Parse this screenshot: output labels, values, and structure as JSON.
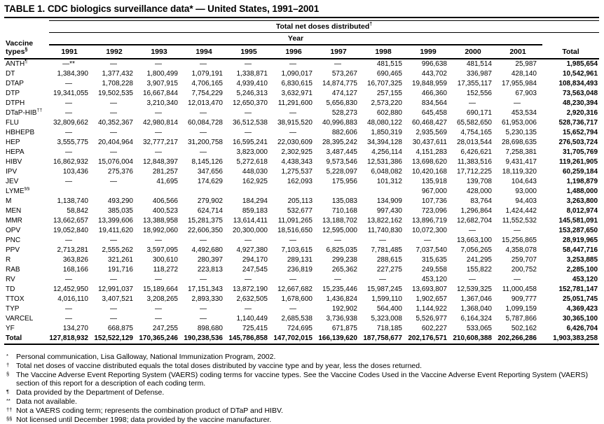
{
  "title": "TABLE 1. CDC biologics surveillance data* — United States, 1991–2001",
  "table": {
    "spanner1": "Total net doses distributed",
    "spanner1_sup": "†",
    "spanner2": "Year",
    "row_header_line1": "Vaccine",
    "row_header_line2": "types",
    "row_header_sup": "§",
    "columns": [
      "1991",
      "1992",
      "1993",
      "1994",
      "1995",
      "1996",
      "1997",
      "1998",
      "1999",
      "2000",
      "2001"
    ],
    "total_label": "Total",
    "rows": [
      {
        "label": "ANTH",
        "sup": "¶",
        "values": [
          "—**",
          "—",
          "—",
          "—",
          "—",
          "—",
          "—",
          "481,515",
          "996,638",
          "481,514",
          "25,987"
        ],
        "total": "1,985,654"
      },
      {
        "label": "DT",
        "sup": "",
        "values": [
          "1,384,390",
          "1,377,432",
          "1,800,499",
          "1,079,191",
          "1,338,871",
          "1,090,017",
          "573,267",
          "690,465",
          "443,702",
          "336,987",
          "428,140"
        ],
        "total": "10,542,961"
      },
      {
        "label": "DTAP",
        "sup": "",
        "values": [
          "—",
          "1,708,228",
          "3,907,915",
          "4,706,165",
          "4,939,410",
          "6,830,615",
          "14,874,775",
          "16,707,325",
          "19,848,959",
          "17,355,117",
          "17,955,984"
        ],
        "total": "108,834,493"
      },
      {
        "label": "DTP",
        "sup": "",
        "values": [
          "19,341,055",
          "19,502,535",
          "16,667,844",
          "7,754,229",
          "5,246,313",
          "3,632,971",
          "474,127",
          "257,155",
          "466,360",
          "152,556",
          "67,903"
        ],
        "total": "73,563,048"
      },
      {
        "label": "DTPH",
        "sup": "",
        "values": [
          "—",
          "—",
          "3,210,340",
          "12,013,470",
          "12,650,370",
          "11,291,600",
          "5,656,830",
          "2,573,220",
          "834,564",
          "—",
          "—"
        ],
        "total": "48,230,394"
      },
      {
        "label": "DTaP-HIB",
        "sup": "††",
        "values": [
          "—",
          "—",
          "—",
          "—",
          "—",
          "—",
          "528,273",
          "602,880",
          "645,458",
          "690,171",
          "453,534"
        ],
        "total": "2,920,316"
      },
      {
        "label": "FLU",
        "sup": "",
        "values": [
          "32,809,662",
          "40,352,367",
          "42,980,814",
          "60,084,728",
          "36,512,538",
          "38,915,520",
          "40,996,883",
          "48,080,122",
          "60,468,427",
          "65,582,650",
          "61,953,006"
        ],
        "total": "528,736,717"
      },
      {
        "label": "HBHEPB",
        "sup": "",
        "values": [
          "—",
          "—",
          "—",
          "—",
          "—",
          "—",
          "882,606",
          "1,850,319",
          "2,935,569",
          "4,754,165",
          "5,230,135"
        ],
        "total": "15,652,794"
      },
      {
        "label": "HEP",
        "sup": "",
        "values": [
          "3,555,775",
          "20,404,964",
          "32,777,217",
          "31,200,758",
          "16,595,241",
          "22,030,609",
          "28,395,242",
          "34,394,128",
          "30,437,611",
          "28,013,544",
          "28,698,635"
        ],
        "total": "276,503,724"
      },
      {
        "label": "HEPA",
        "sup": "",
        "values": [
          "—",
          "—",
          "—",
          "—",
          "3,823,000",
          "2,302,925",
          "3,487,445",
          "4,256,114",
          "4,151,283",
          "6,426,621",
          "7,258,381"
        ],
        "total": "31,705,769"
      },
      {
        "label": "HIBV",
        "sup": "",
        "values": [
          "16,862,932",
          "15,076,004",
          "12,848,397",
          "8,145,126",
          "5,272,618",
          "4,438,343",
          "9,573,546",
          "12,531,386",
          "13,698,620",
          "11,383,516",
          "9,431,417"
        ],
        "total": "119,261,905"
      },
      {
        "label": "IPV",
        "sup": "",
        "values": [
          "103,436",
          "275,376",
          "281,257",
          "347,656",
          "448,030",
          "1,275,537",
          "5,228,097",
          "6,048,082",
          "10,420,168",
          "17,712,225",
          "18,119,320"
        ],
        "total": "60,259,184"
      },
      {
        "label": "JEV",
        "sup": "",
        "values": [
          "—",
          "—",
          "41,695",
          "174,629",
          "162,925",
          "162,093",
          "175,956",
          "101,312",
          "135,918",
          "139,708",
          "104,643"
        ],
        "total": "1,198,879"
      },
      {
        "label": "LYME",
        "sup": "§§",
        "values": [
          "",
          "",
          "",
          "",
          "",
          "",
          "",
          "",
          "967,000",
          "428,000",
          "93,000"
        ],
        "total": "1,488,000"
      },
      {
        "label": "M",
        "sup": "",
        "values": [
          "1,138,740",
          "493,290",
          "406,566",
          "279,902",
          "184,294",
          "205,113",
          "135,083",
          "134,909",
          "107,736",
          "83,764",
          "94,403"
        ],
        "total": "3,263,800"
      },
      {
        "label": "MEN",
        "sup": "",
        "values": [
          "58,842",
          "385,035",
          "400,523",
          "624,714",
          "859,183",
          "532,677",
          "710,168",
          "997,430",
          "723,096",
          "1,296,864",
          "1,424,442"
        ],
        "total": "8,012,974"
      },
      {
        "label": "MMR",
        "sup": "",
        "values": [
          "13,662,657",
          "13,399,606",
          "13,388,958",
          "15,281,375",
          "13,614,411",
          "11,091,265",
          "13,188,702",
          "13,822,162",
          "13,896,719",
          "12,682,704",
          "11,552,532"
        ],
        "total": "145,581,091"
      },
      {
        "label": "OPV",
        "sup": "",
        "values": [
          "19,052,840",
          "19,411,620",
          "18,992,060",
          "22,606,350",
          "20,300,000",
          "18,516,650",
          "12,595,000",
          "11,740,830",
          "10,072,300",
          "—",
          "—"
        ],
        "total": "153,287,650"
      },
      {
        "label": "PNC",
        "sup": "",
        "values": [
          "—",
          "—",
          "—",
          "—",
          "—",
          "—",
          "—",
          "—",
          "—",
          "13,663,100",
          "15,256,865"
        ],
        "total": "28,919,965"
      },
      {
        "label": "PPV",
        "sup": "",
        "values": [
          "2,713,281",
          "2,555,262",
          "3,597,095",
          "4,492,680",
          "4,927,380",
          "7,103,615",
          "6,825,035",
          "7,781,485",
          "7,037,540",
          "7,056,265",
          "4,358,078"
        ],
        "total": "58,447,716"
      },
      {
        "label": "R",
        "sup": "",
        "values": [
          "363,826",
          "321,261",
          "300,610",
          "280,397",
          "294,170",
          "289,131",
          "299,238",
          "288,615",
          "315,635",
          "241,295",
          "259,707"
        ],
        "total": "3,253,885"
      },
      {
        "label": "RAB",
        "sup": "",
        "values": [
          "168,166",
          "191,716",
          "118,272",
          "223,813",
          "247,545",
          "236,819",
          "265,362",
          "227,275",
          "249,558",
          "155,822",
          "200,752"
        ],
        "total": "2,285,100"
      },
      {
        "label": "RV",
        "sup": "",
        "values": [
          "—",
          "—",
          "—",
          "—",
          "—",
          "—",
          "—",
          "—",
          "453,120",
          "—",
          "—"
        ],
        "total": "453,120"
      },
      {
        "label": "TD",
        "sup": "",
        "values": [
          "12,452,950",
          "12,991,037",
          "15,189,664",
          "17,151,343",
          "13,872,190",
          "12,667,682",
          "15,235,446",
          "15,987,245",
          "13,693,807",
          "12,539,325",
          "11,000,458"
        ],
        "total": "152,781,147"
      },
      {
        "label": "TTOX",
        "sup": "",
        "values": [
          "4,016,110",
          "3,407,521",
          "3,208,265",
          "2,893,330",
          "2,632,505",
          "1,678,600",
          "1,436,824",
          "1,599,110",
          "1,902,657",
          "1,367,046",
          "909,777"
        ],
        "total": "25,051,745"
      },
      {
        "label": "TYP",
        "sup": "",
        "values": [
          "—",
          "—",
          "—",
          "—",
          "—",
          "—",
          "192,902",
          "564,400",
          "1,144,922",
          "1,368,040",
          "1,099,159"
        ],
        "total": "4,369,423"
      },
      {
        "label": "VARCEL",
        "sup": "",
        "values": [
          "—",
          "—",
          "—",
          "—",
          "1,140,449",
          "2,685,538",
          "3,736,938",
          "5,323,008",
          "5,526,977",
          "6,164,324",
          "5,787,866"
        ],
        "total": "30,365,100"
      },
      {
        "label": "YF",
        "sup": "",
        "values": [
          "134,270",
          "668,875",
          "247,255",
          "898,680",
          "725,415",
          "724,695",
          "671,875",
          "718,185",
          "602,227",
          "533,065",
          "502,162"
        ],
        "total": "6,426,704"
      }
    ],
    "total_row": {
      "label": "Total",
      "sup": "",
      "values": [
        "127,818,932",
        "152,522,129",
        "170,365,246",
        "190,238,536",
        "145,786,858",
        "147,702,015",
        "166,139,620",
        "187,758,677",
        "202,176,571",
        "210,608,388",
        "202,266,286"
      ],
      "total": "1,903,383,258"
    }
  },
  "footnotes": [
    {
      "mark": "*",
      "text": "Personal communication, Lisa Galloway, National Immunization Program, 2002."
    },
    {
      "mark": "†",
      "text": "Total net doses of vaccine distributed equals the total doses distributed by vaccine type and by year, less the doses returned."
    },
    {
      "mark": "§",
      "text": "The Vaccine Adverse Event Reporting System (VAERS) coding terms for vaccine types. See the Vaccine Codes Used in the Vaccine Adverse Event Reporting System (VAERS) section of this report for a description of each coding term."
    },
    {
      "mark": "¶",
      "text": "Data provided by the Department of Defense."
    },
    {
      "mark": "**",
      "text": "Data not available."
    },
    {
      "mark": "††",
      "text": "Not a VAERS coding term; represents the combination product of DTaP and HIBV."
    },
    {
      "mark": "§§",
      "text": "Not licensed until December 1998; data provided by the vaccine manufacturer."
    }
  ]
}
